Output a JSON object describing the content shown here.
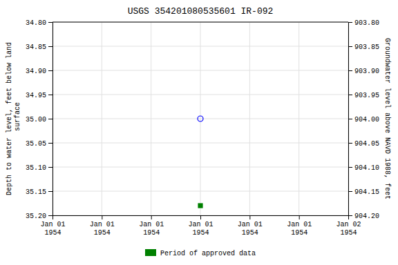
{
  "chart_data": {
    "type": "scatter",
    "title": "USGS 354201080535601 IR-092",
    "y_label": "Depth to water level, feet below land\n surface",
    "y2_label": "Groundwater level above NAVD 1988, feet",
    "categories": [
      "Jan 01\n1954",
      "Jan 01\n1954",
      "Jan 01\n1954",
      "Jan 01\n1954",
      "Jan 01\n1954",
      "Jan 01\n1954",
      "Jan 02\n1954"
    ],
    "series": [
      {
        "color": "blue",
        "marker": "open-circle",
        "values": [
          null,
          null,
          null,
          35.0,
          null,
          null,
          null
        ]
      },
      {
        "name": "Period of approved data",
        "color": "green",
        "marker": "square",
        "values": [
          null,
          null,
          null,
          35.18,
          null,
          null,
          null
        ]
      }
    ],
    "ylim": [
      35.2,
      34.8
    ],
    "yticks": [
      {
        "value": 34.8,
        "label": "34.80"
      },
      34.85,
      {
        "value": 34.9,
        "label": "34.90"
      },
      34.95,
      {
        "value": 35.0,
        "label": "35.00"
      },
      35.05,
      {
        "value": 35.1,
        "label": "35.10"
      },
      35.15,
      {
        "value": 35.2,
        "label": "35.20"
      }
    ],
    "y2lim": [
      904.2,
      903.8
    ],
    "y2ticks": [
      {
        "value": 904.2,
        "label": "904.20"
      },
      904.15,
      {
        "value": 904.1,
        "label": "904.10"
      },
      904.05,
      {
        "value": 904.0,
        "label": "904.00"
      },
      903.95,
      {
        "value": 903.9,
        "label": "903.90"
      },
      903.85,
      {
        "value": 903.8,
        "label": "903.80"
      }
    ],
    "grid": true,
    "legend": "bottom"
  }
}
